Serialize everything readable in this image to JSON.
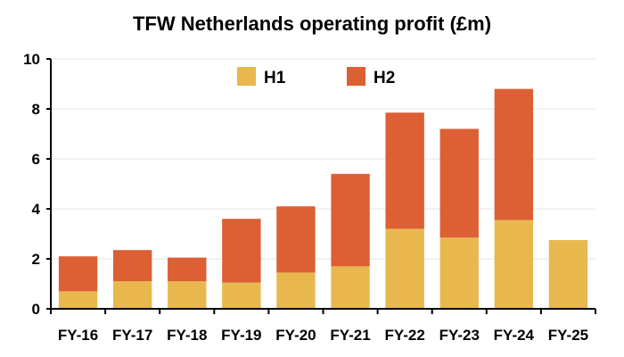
{
  "chart_data": {
    "type": "bar",
    "stacked": true,
    "title": "TFW Netherlands operating profit (£m)",
    "xlabel": "",
    "ylabel": "",
    "categories": [
      "FY-16",
      "FY-17",
      "FY-18",
      "FY-19",
      "FY-20",
      "FY-21",
      "FY-22",
      "FY-23",
      "FY-24",
      "FY-25"
    ],
    "series": [
      {
        "name": "H1",
        "color": "#E8B84E",
        "values": [
          0.7,
          1.1,
          1.1,
          1.05,
          1.45,
          1.7,
          3.2,
          2.85,
          3.55,
          2.75
        ]
      },
      {
        "name": "H2",
        "color": "#DD5F34",
        "values": [
          1.4,
          1.25,
          0.95,
          2.55,
          2.65,
          3.7,
          4.65,
          4.35,
          5.25,
          0
        ]
      }
    ],
    "ylim": [
      0,
      10
    ],
    "yticks": [
      0,
      2,
      4,
      6,
      8,
      10
    ],
    "grid": true,
    "legend_position": "top-center"
  }
}
